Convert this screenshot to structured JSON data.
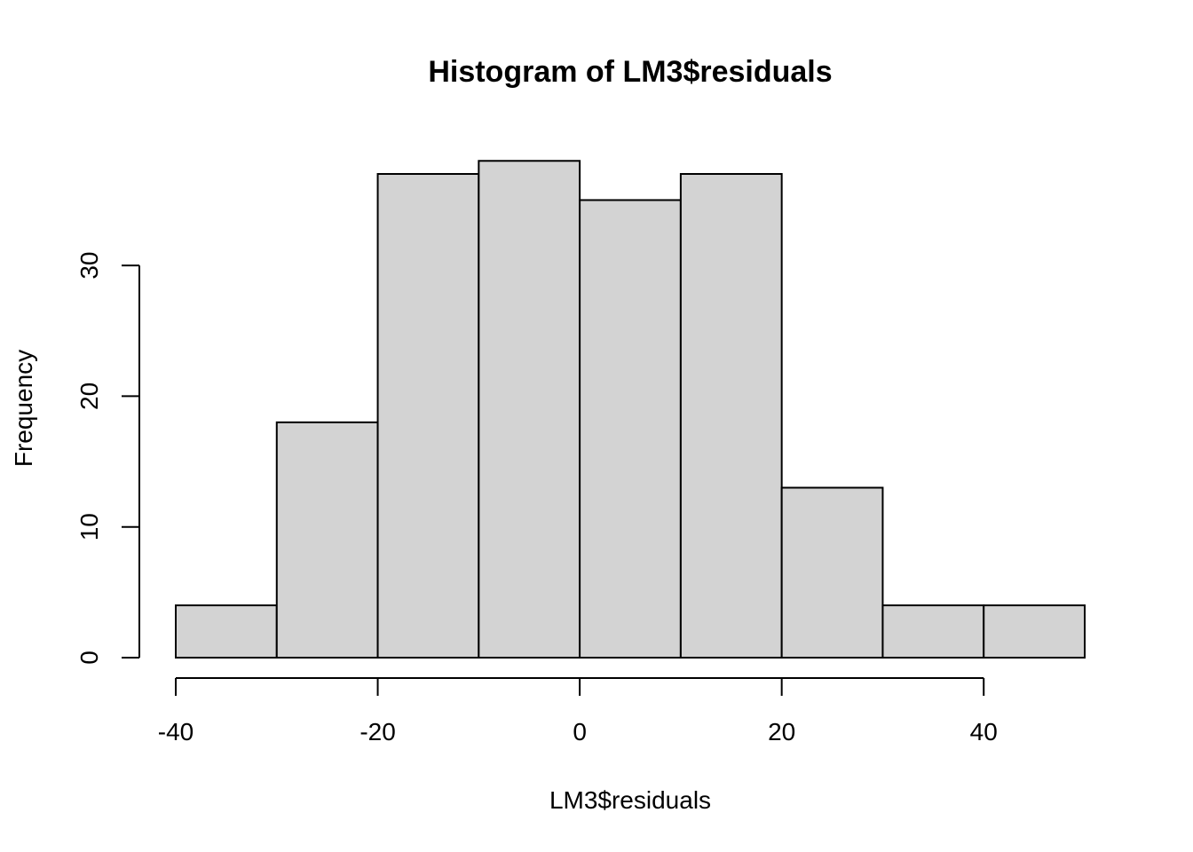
{
  "chart_data": {
    "type": "bar",
    "title": "Histogram of LM3$residuals",
    "xlabel": "LM3$residuals",
    "ylabel": "Frequency",
    "bin_edges": [
      -40,
      -30,
      -20,
      -10,
      0,
      10,
      20,
      30,
      40,
      50
    ],
    "values": [
      4,
      18,
      37,
      38,
      35,
      37,
      13,
      4,
      4
    ],
    "xlim": [
      -40,
      50
    ],
    "ylim": [
      0,
      38
    ],
    "x_ticks": [
      -40,
      -20,
      0,
      20,
      40
    ],
    "x_tick_labels": [
      "-40",
      "-20",
      "0",
      "20",
      "40"
    ],
    "y_ticks": [
      0,
      10,
      20,
      30
    ],
    "y_tick_labels": [
      "0",
      "10",
      "20",
      "30"
    ],
    "bar_color": "#d3d3d3",
    "grid": false,
    "legend": "none"
  }
}
